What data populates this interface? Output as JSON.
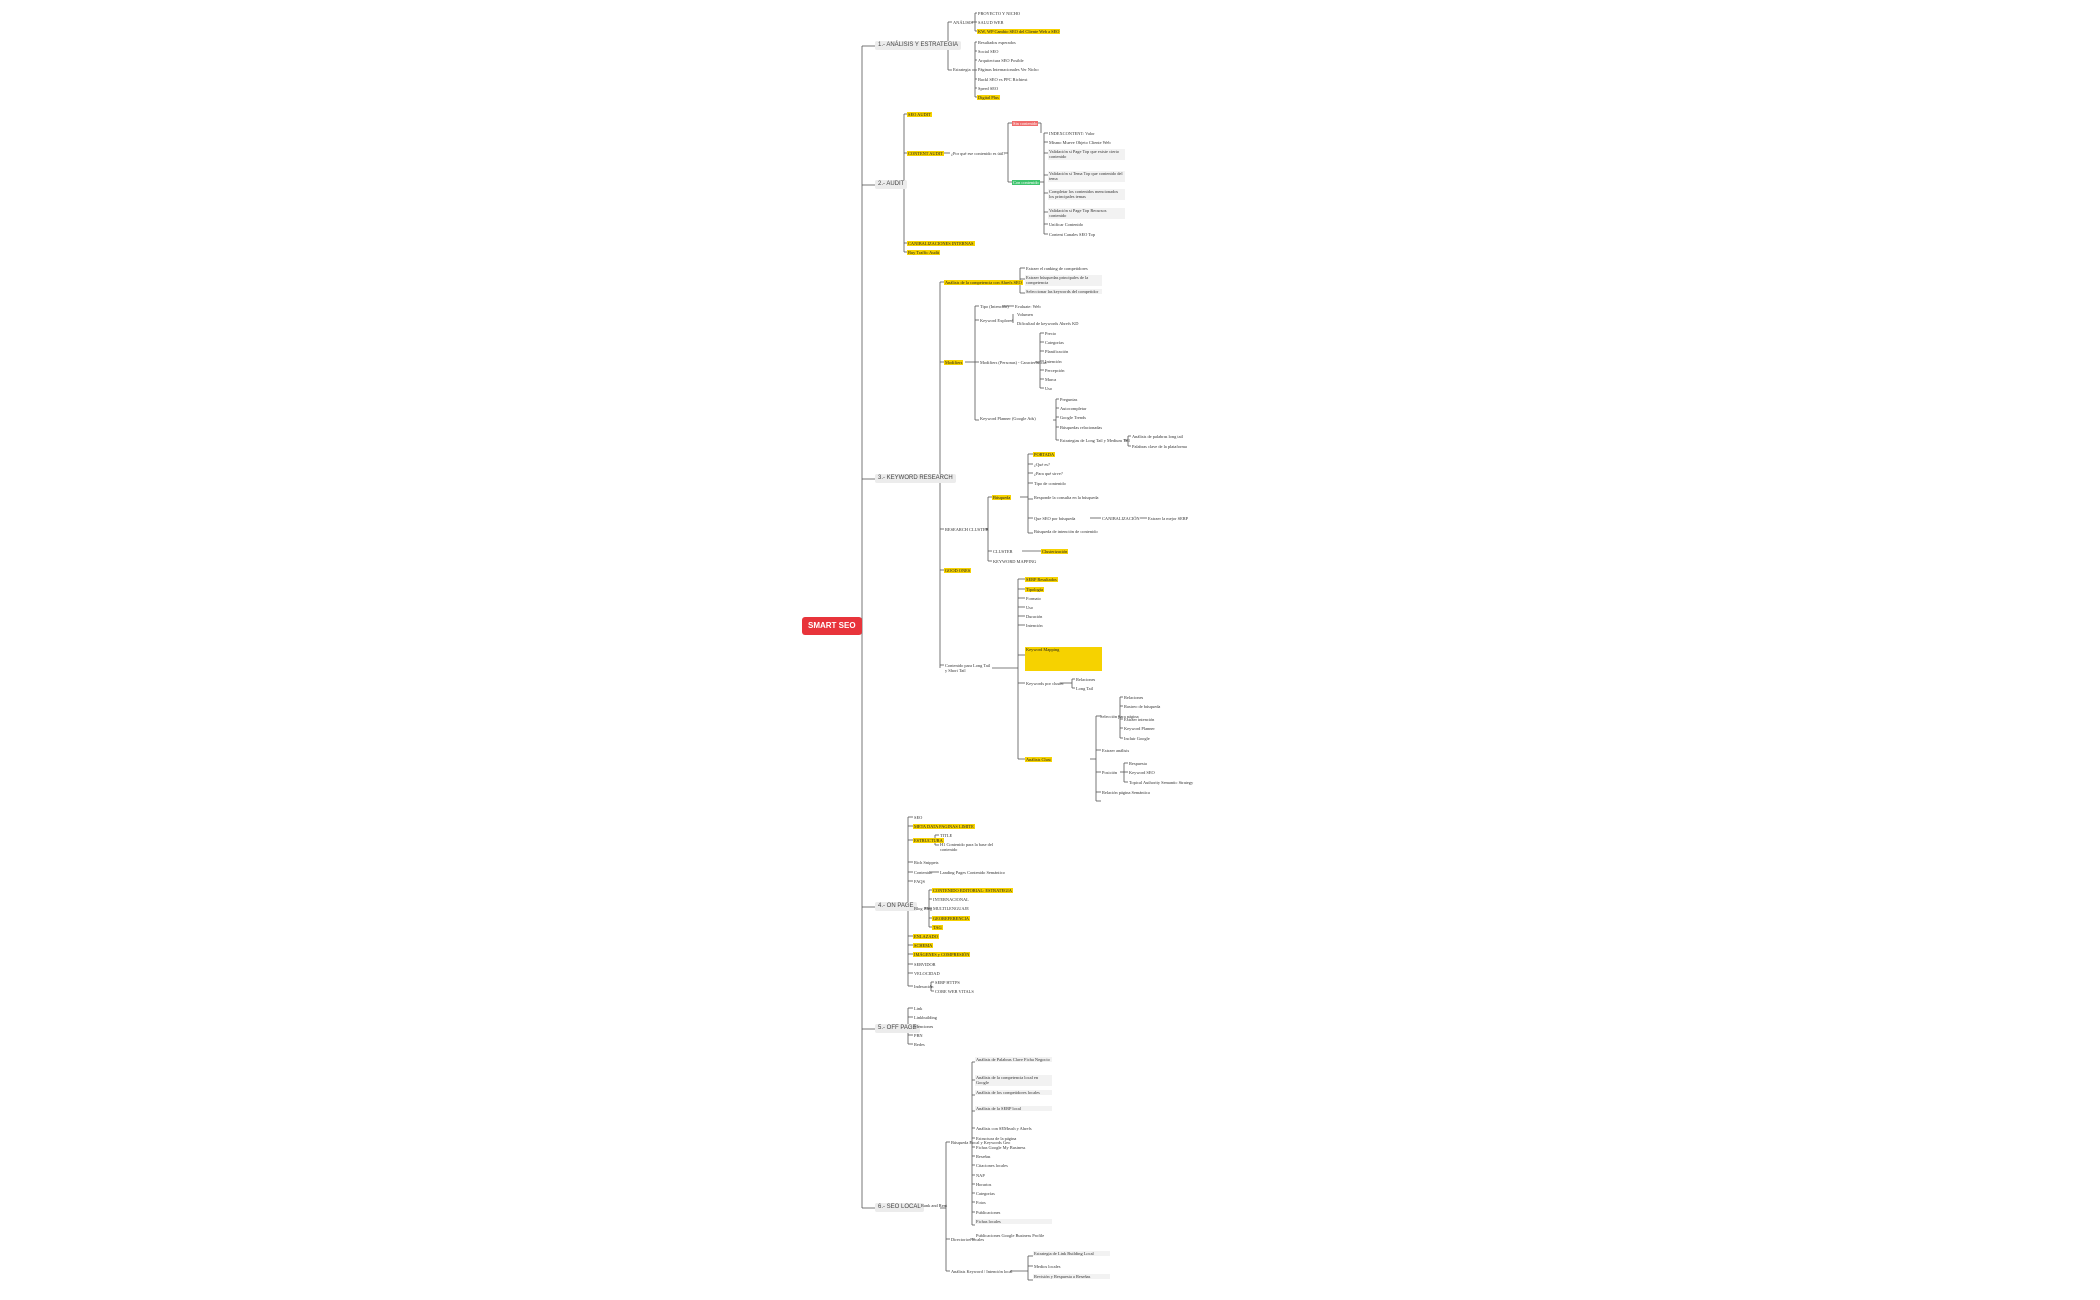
{
  "mindmap": {
    "root": "SMART SEO",
    "sections": [
      {
        "label": "1.- ANÁLISIS Y ESTRATEGIA",
        "nodes": [
          "ANÁLISIS",
          "PROYECTO Y NICHO",
          "SALUD WEB",
          "KW, WP Cambio SEO del Cliente Web a SEO",
          "Estrategia",
          "Resultados esperados",
          "Social SEO",
          "Arquitectura SEO Posible",
          "Páginas Internacionales Ver Nicho",
          "Backl SEO vs PPC Richtext",
          "Speed SEO",
          "Digital Plus"
        ]
      },
      {
        "label": "2.- AUDIT",
        "nodes": [
          "SEO AUDIT",
          "CONTENT AUDIT",
          "¿Por qué ese contenido es útil?",
          "Sin contenido",
          "Con contenido",
          "INDEXCONTENT: Valor",
          "Mismo Mueve Objeto Cliente Web",
          "Validación si Page Top que existe cierto contenido",
          "Validación si Tema Top que contenido del tema",
          "Completar los contenidos mencionados los principales temas",
          "Validación si Page Top Recursos contenido",
          "Unificar Contenido",
          "Content Canales SEO Top",
          "CANIBALIZACIONES INTERNAS",
          "Buy Traffic Audit"
        ]
      },
      {
        "label": "3.- KEYWORD RESEARCH",
        "nodes": [
          "Análisis de la competencia con Ahrefs SEO",
          "Extraer el ranking de competidores",
          "Extraer búsquedas principales de la competencia",
          "Seleccionar las keywords del competidor",
          "Tipo (Intención)",
          "Evaluate: Web",
          "Keyword Explorer",
          "Volumen",
          "Dificultad de keywords Ahrefs KD",
          "Modifiers",
          "Modifiers (Personas) - Características",
          "Precio",
          "Categorías",
          "Planificación",
          "Intención",
          "Percepción",
          "Marca",
          "Uso",
          "Keyword Planner (Google Ads)",
          "Preguntas",
          "Autocompletar",
          "Google Trends",
          "Búsquedas relacionadas",
          "Estrategias de Long Tail y Medium Tail",
          "Análisis de palabras long tail",
          "Palabras clave de la plataforma",
          "RESEARCH CLUSTER",
          "Búsqueda",
          "PORTADA",
          "¿Qué es?",
          "¿Para qué sirve?",
          "Tipo de contenido",
          "Responde la consulta en la búsqueda",
          "Que SEO por búsqueda",
          "CANIBALIZACIÓN",
          "Extraer la mejor SERP",
          "Búsqueda de intención de contenido",
          "CLUSTER",
          "Clusterización",
          "KEYWORD MAPPING",
          "GOOD ONES",
          "SERP Resultados",
          "Tipología",
          "Formato",
          "Uso",
          "Duración",
          "Intención",
          "Contenido para Long Tail y Short Tail",
          "Keyword Mapping",
          "Keywords por cluster",
          "Long Tail",
          "Scrapeo Google Ads",
          "Relaciones",
          "Rastreo de búsqueda",
          "Extraer intención",
          "Keyword Planner",
          "Incluir Google",
          "Extraer análisis",
          "Selección para página",
          "Topical Authority Semantic Strategy",
          "Análisis Clust",
          "Backlinks",
          "Posición",
          "Respuesta",
          "Keyword SEO",
          "Relación página Semántica"
        ]
      },
      {
        "label": "4.- ON PAGE",
        "nodes": [
          "SEO",
          "META DATA PAGINAS LIMITE",
          "ESTRUCTURA",
          "TITLE",
          "H1 Contenido para la base del contenido",
          "Rich Snippets",
          "Contenido",
          "Landing Pages Contenido Semántico",
          "FAQS",
          "Blog Blog",
          "CONTENIDO EDITORIAL: ESTRATEGIA",
          "INTERNACIONAL",
          "MULTILENGUAJE",
          "GEOREFERENCIA",
          "TAG",
          "ENLAZADO",
          "SCHEMA",
          "IMÁGENES y COMPRESIÓN",
          "SERVIDOR",
          "VELOCIDAD",
          "Indexación",
          "SERP HTTPS",
          "CORE WEB VITALS"
        ]
      },
      {
        "label": "5.- OFF PAGE",
        "nodes": [
          "Link",
          "Linkbuilding",
          "Menciones",
          "PBN",
          "Redes"
        ]
      },
      {
        "label": "6.- SEO LOCAL",
        "nodes": [
          "Análisis de Palabras Clave Ficha Negocio",
          "Análisis de la competencia local en Google",
          "Análisis de los competidores locales",
          "Análisis de la SERP local",
          "Análisis con SEMrush y Ahrefs",
          "Estructura de la página",
          "Fichas Google My Business",
          "Reseñas",
          "Citaciones locales",
          "NAP",
          "Horarios",
          "Categorías",
          "Fotos",
          "Publicaciones",
          "Fichas locales",
          "Publicaciones Google Business Profile",
          "Revisión y Respuesta a Reseñas",
          "Rank and Rent",
          "Estrategia de Link Building Local",
          "Directorios locales",
          "Medios locales",
          "Análisis Keyword / Intención local",
          "Búsqueda Local y Keywords Geo"
        ]
      }
    ]
  },
  "colors": {
    "root": "#e8343b",
    "highlight": "#f6d200",
    "line": "#555555",
    "red_tag": "#ef6b6b",
    "green_tag": "#3ec46d"
  }
}
